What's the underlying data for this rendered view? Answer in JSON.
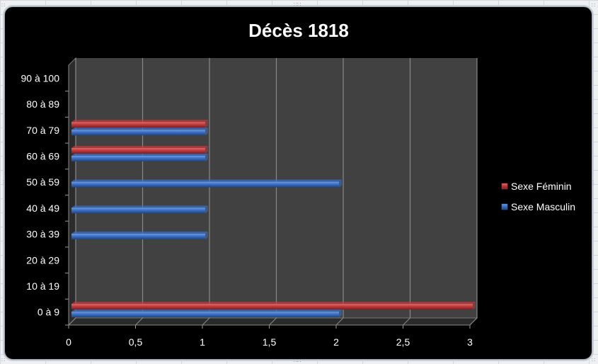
{
  "chart_data": {
    "type": "bar",
    "orientation": "horizontal",
    "title": "Décès 1818",
    "categories": [
      "0 à 9",
      "10 à 19",
      "20 à 29",
      "30 à 39",
      "40 à 49",
      "50 à 59",
      "60 à 69",
      "70 à 79",
      "80 à 89",
      "90 à 100"
    ],
    "x_ticks": [
      "0",
      "0,5",
      "1",
      "1,5",
      "2",
      "2,5",
      "3"
    ],
    "xlim": [
      0,
      3
    ],
    "grid": true,
    "legend_position": "right",
    "series": [
      {
        "name": "Sexe Féminin",
        "color": "#c0393b",
        "values": [
          3,
          0,
          0,
          0,
          0,
          0,
          1,
          1,
          0,
          0
        ]
      },
      {
        "name": "Sexe Masculin",
        "color": "#3a6fc4",
        "values": [
          2,
          0,
          0,
          1,
          1,
          2,
          1,
          1,
          0,
          0
        ]
      }
    ]
  }
}
